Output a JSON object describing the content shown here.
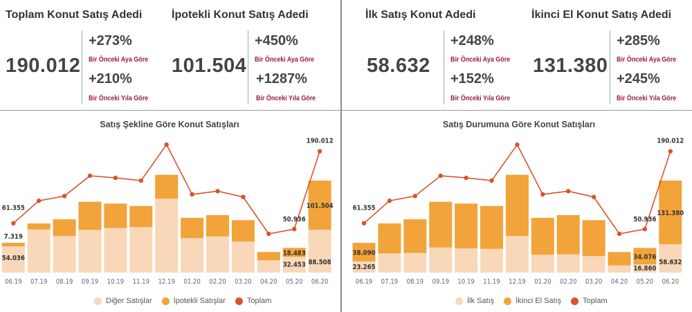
{
  "kpis": [
    {
      "title": "Toplam Konut Satış Adedi",
      "value": "190.012",
      "mom": "+273%",
      "mom_label": "Bir Önceki Aya Göre",
      "yoy": "+210%",
      "yoy_label": "Bir Önceki Yıla Göre"
    },
    {
      "title": "İpotekli Konut Satış Adedi",
      "value": "101.504",
      "mom": "+450%",
      "mom_label": "Bir Önceki Aya Göre",
      "yoy": "+1287%",
      "yoy_label": "Bir Önceki Yıla Göre"
    },
    {
      "title": "İlk Satış Konut Adedi",
      "value": "58.632",
      "mom": "+248%",
      "mom_label": "Bir Önceki Aya Göre",
      "yoy": "+152%",
      "yoy_label": "Bir Önceki Yıla Göre"
    },
    {
      "title": "İkinci El Konut Satış Adedi",
      "value": "131.380",
      "mom": "+285%",
      "mom_label": "Bir Önceki Aya Göre",
      "yoy": "+245%",
      "yoy_label": "Bir Önceki Yıla Göre"
    }
  ],
  "colors": {
    "light": "#f8d8b8",
    "orange": "#f2a33a",
    "line": "#d9532b",
    "label_accent": "#9a1a48"
  },
  "chart_data": [
    {
      "type": "bar",
      "stacked": true,
      "title": "Satış Şekline Göre Konut Satışları",
      "categories": [
        "06.19",
        "07.19",
        "08.19",
        "09.19",
        "10.19",
        "11.19",
        "12.19",
        "01.20",
        "02.20",
        "03.20",
        "04.20",
        "05.20",
        "06.20"
      ],
      "series": [
        {
          "name": "Diğer Satışlar",
          "kind": "bar",
          "color": "#f8d8b8",
          "values": [
            54036,
            89000,
            75700,
            88200,
            91900,
            93900,
            152500,
            71000,
            74700,
            64300,
            25300,
            32453,
            88508
          ]
        },
        {
          "name": "İpotekli Satışlar",
          "kind": "bar",
          "color": "#f2a33a",
          "values": [
            7319,
            12500,
            34300,
            58000,
            50600,
            43700,
            49400,
            42000,
            44000,
            44000,
            17100,
            18483,
            101504
          ]
        },
        {
          "name": "Toplam",
          "kind": "line",
          "color": "#d9532b",
          "values": [
            61355,
            101500,
            110000,
            146200,
            142500,
            137600,
            201900,
            113000,
            118700,
            108300,
            42400,
            50936,
            190012
          ]
        }
      ],
      "legend": "bottom"
    },
    {
      "type": "bar",
      "stacked": true,
      "title": "Satış Durumuna Göre Konut Satışları",
      "categories": [
        "06.19",
        "07.19",
        "08.19",
        "09.19",
        "10.19",
        "11.19",
        "12.19",
        "01.20",
        "02.20",
        "03.20",
        "04.20",
        "05.20",
        "06.20"
      ],
      "series": [
        {
          "name": "İlk Satış",
          "kind": "bar",
          "color": "#f8d8b8",
          "values": [
            23265,
            39600,
            40500,
            51900,
            50000,
            49000,
            75700,
            36700,
            37600,
            33900,
            14700,
            16860,
            58632
          ]
        },
        {
          "name": "İkinci El Satış",
          "kind": "bar",
          "color": "#f2a33a",
          "values": [
            38090,
            61900,
            69500,
            94300,
            92500,
            88600,
            126200,
            76300,
            81100,
            74400,
            27700,
            34076,
            131380
          ]
        },
        {
          "name": "Toplam",
          "kind": "line",
          "color": "#d9532b",
          "values": [
            61355,
            101500,
            110000,
            146200,
            142500,
            137600,
            201900,
            113000,
            118700,
            108300,
            42400,
            50936,
            190012
          ]
        }
      ],
      "legend": "bottom"
    }
  ]
}
